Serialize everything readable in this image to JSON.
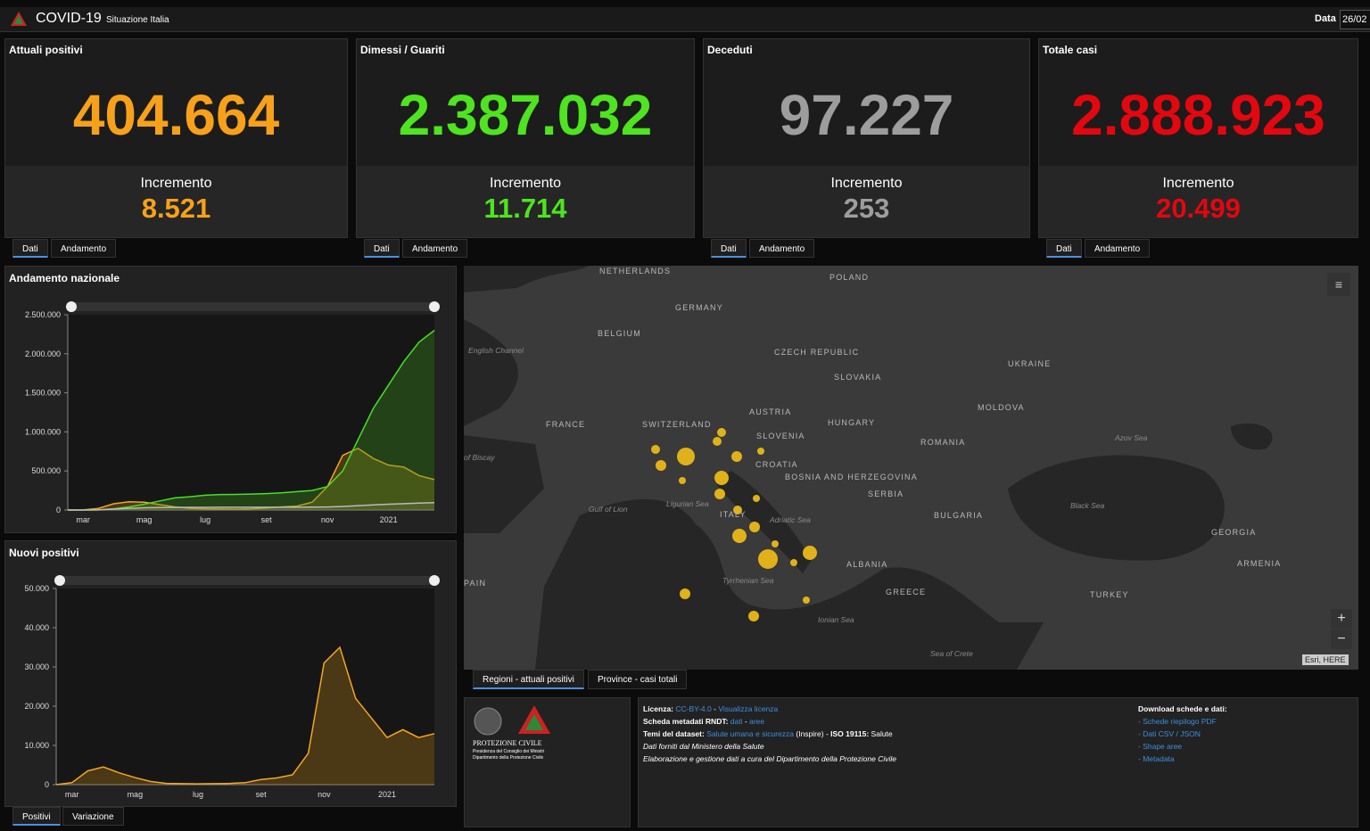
{
  "header": {
    "title": "COVID-19",
    "subtitle": "Situazione Italia",
    "date_label": "Data",
    "date_value": "26/02"
  },
  "cards": [
    {
      "title": "Attuali positivi",
      "value": "404.664",
      "increment_label": "Incremento",
      "increment": "8.521",
      "color": "#f7a11a",
      "tabs": [
        "Dati",
        "Andamento"
      ]
    },
    {
      "title": "Dimessi / Guariti",
      "value": "2.387.032",
      "increment_label": "Incremento",
      "increment": "11.714",
      "color": "#4ee41f",
      "tabs": [
        "Dati",
        "Andamento"
      ]
    },
    {
      "title": "Deceduti",
      "value": "97.227",
      "increment_label": "Incremento",
      "increment": "253",
      "color": "#9d9d9d",
      "tabs": [
        "Dati",
        "Andamento"
      ]
    },
    {
      "title": "Totale casi",
      "value": "2.888.923",
      "increment_label": "Incremento",
      "increment": "20.499",
      "color": "#e3070f",
      "tabs": [
        "Dati",
        "Andamento"
      ]
    }
  ],
  "charts": [
    {
      "type": "line",
      "title": "Andamento nazionale",
      "categories": [
        null,
        "mar",
        null,
        null,
        null,
        "mag",
        null,
        null,
        null,
        "lug",
        null,
        null,
        null,
        "set",
        null,
        null,
        null,
        "nov",
        null,
        null,
        null,
        "2021",
        null,
        null,
        null
      ],
      "series": [
        {
          "color": "#f5a623",
          "values": [
            0,
            1000,
            20000,
            80000,
            105000,
            100000,
            70000,
            40000,
            22000,
            15000,
            12500,
            12000,
            15000,
            26000,
            40000,
            50000,
            100000,
            300000,
            700000,
            790000,
            660000,
            575000,
            550000,
            440000,
            390000
          ]
        },
        {
          "color": "#48e026",
          "values": [
            0,
            0,
            2000,
            15000,
            40000,
            75000,
            115000,
            155000,
            170000,
            190000,
            198000,
            200000,
            204000,
            210000,
            220000,
            235000,
            250000,
            300000,
            500000,
            900000,
            1300000,
            1600000,
            1900000,
            2150000,
            2300000
          ]
        },
        {
          "color": "#bbbbbb",
          "values": [
            0,
            30,
            1800,
            13000,
            22000,
            28000,
            31000,
            33000,
            34300,
            34800,
            35000,
            35150,
            35400,
            35500,
            35700,
            36000,
            36500,
            39000,
            45000,
            56000,
            66000,
            74000,
            81000,
            89000,
            94000
          ]
        }
      ],
      "ylim": [
        0,
        2500000
      ],
      "yticks": [
        0,
        {
          "value": 500000,
          "label": "500.000"
        },
        {
          "value": 1000000,
          "label": "1.000.000"
        },
        {
          "value": 1500000,
          "label": "1.500.000"
        },
        {
          "value": 2000000,
          "label": "2.000.000"
        },
        {
          "value": 2500000,
          "label": "2.500.000"
        }
      ]
    },
    {
      "type": "line",
      "title": "Nuovi positivi",
      "tabs": [
        "Positivi",
        "Variazione"
      ],
      "categories": [
        null,
        "mar",
        null,
        null,
        null,
        "mag",
        null,
        null,
        null,
        "lug",
        null,
        null,
        null,
        "set",
        null,
        null,
        null,
        "nov",
        null,
        null,
        null,
        "2021",
        null,
        null,
        null
      ],
      "series": [
        {
          "color": "#f5a623",
          "values": [
            0,
            500,
            3500,
            4500,
            3000,
            1800,
            800,
            300,
            250,
            200,
            250,
            300,
            500,
            1300,
            1700,
            2500,
            8000,
            31000,
            35000,
            22000,
            17000,
            12000,
            14000,
            12000,
            13000
          ]
        }
      ],
      "ylim": [
        0,
        50000
      ],
      "yticks": [
        0,
        {
          "value": 10000,
          "label": "10.000"
        },
        {
          "value": 20000,
          "label": "20.000"
        },
        {
          "value": 30000,
          "label": "30.000"
        },
        {
          "value": 40000,
          "label": "40.000"
        },
        {
          "value": 50000,
          "label": "50.000"
        }
      ]
    }
  ],
  "map": {
    "labels": [
      "NETHERLANDS",
      "POLAND",
      "GERMANY",
      "BELGIUM",
      "English Channel",
      "CZECH REPUBLIC",
      "UKRAINE",
      "SLOVAKIA",
      "FRANCE",
      "SWITZERLAND",
      "AUSTRIA",
      "HUNGARY",
      "MOLDOVA",
      "SLOVENIA",
      "ROMANIA",
      "CROATIA",
      "Azov Sea",
      "of Biscay",
      "BOSNIA AND HERZEGOVINA",
      "SERBIA",
      "Ligurian Sea",
      "ITALY",
      "Black Sea",
      "Gulf of Lion",
      "Adriatic Sea",
      "BULGARIA",
      "GEORGIA",
      "PAIN",
      "ALBANIA",
      "ARMENIA",
      "Tyrrhenian Sea",
      "GREECE",
      "TURKEY",
      "Ionian Sea",
      "Sea of Crete"
    ],
    "attribution": "Esri, HERE",
    "zoom_in": "+",
    "zoom_out": "−",
    "tabs": [
      "Regioni - attuali positivi",
      "Province - casi totali"
    ]
  },
  "footer": {
    "logo": {
      "name": "PROTEZIONE CIVILE",
      "line1": "Presidenza del Consiglio dei Ministri",
      "line2": "Dipartimento della Protezione Civile"
    },
    "info": [
      [
        "Licenza:",
        "CC-BY-4.0",
        "-",
        "Visualizza licenza"
      ],
      [
        "Scheda metadati RNDT:",
        "dati",
        "-",
        "aree"
      ],
      [
        "Temi del dataset:",
        "Salute umana e sicurezza",
        "(Inspire)",
        "-",
        "ISO 19115:",
        "Salute"
      ],
      [
        "Dati forniti dal Ministero della Salute"
      ],
      [
        "Elaborazione e gestione dati a cura del Dipartimento della Protezione Civile"
      ]
    ],
    "downloads": {
      "title": "Download schede e dati:",
      "items": [
        "- Schede riepilogo PDF",
        "- Dati CSV / JSON",
        "- Shape aree",
        "- Metadata"
      ]
    }
  }
}
